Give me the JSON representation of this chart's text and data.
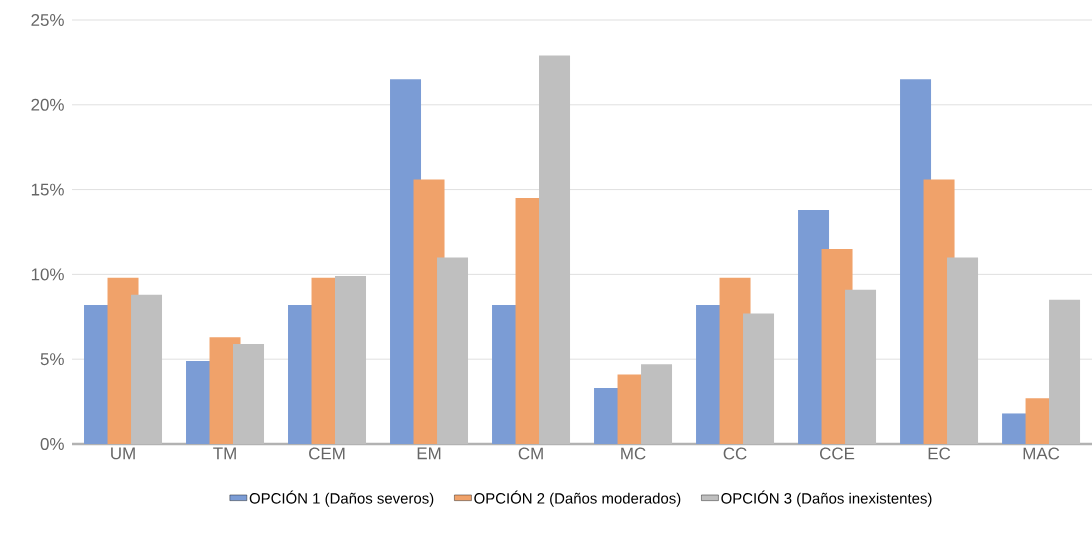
{
  "chart_data": {
    "type": "bar",
    "categories": [
      "UM",
      "TM",
      "CEM",
      "EM",
      "CM",
      "MC",
      "CC",
      "CCE",
      "EC",
      "MAC"
    ],
    "series": [
      {
        "name": "OPCIÓN 1 (Daños severos)",
        "color": "#7b9cd5",
        "values": [
          8.2,
          4.9,
          8.2,
          21.5,
          8.2,
          3.3,
          8.2,
          13.8,
          21.5,
          1.8
        ]
      },
      {
        "name": "OPCIÓN 2 (Daños moderados)",
        "color": "#f0a26a",
        "values": [
          9.8,
          6.3,
          9.8,
          15.6,
          14.5,
          4.1,
          9.8,
          11.5,
          15.6,
          2.7
        ]
      },
      {
        "name": "OPCIÓN 3 (Daños inexistentes)",
        "color": "#bfbfbf",
        "values": [
          8.8,
          5.9,
          9.9,
          11.0,
          22.9,
          4.7,
          7.7,
          9.1,
          11.0,
          8.5
        ]
      }
    ],
    "ylim": [
      0,
      25
    ],
    "yticks": [
      {
        "value": 0,
        "label": "0%"
      },
      {
        "value": 5,
        "label": "5%"
      },
      {
        "value": 10,
        "label": "10%"
      },
      {
        "value": 15,
        "label": "15%"
      },
      {
        "value": 20,
        "label": "20%"
      },
      {
        "value": 25,
        "label": "25%"
      }
    ],
    "grid": "y",
    "legend": "bottom"
  }
}
